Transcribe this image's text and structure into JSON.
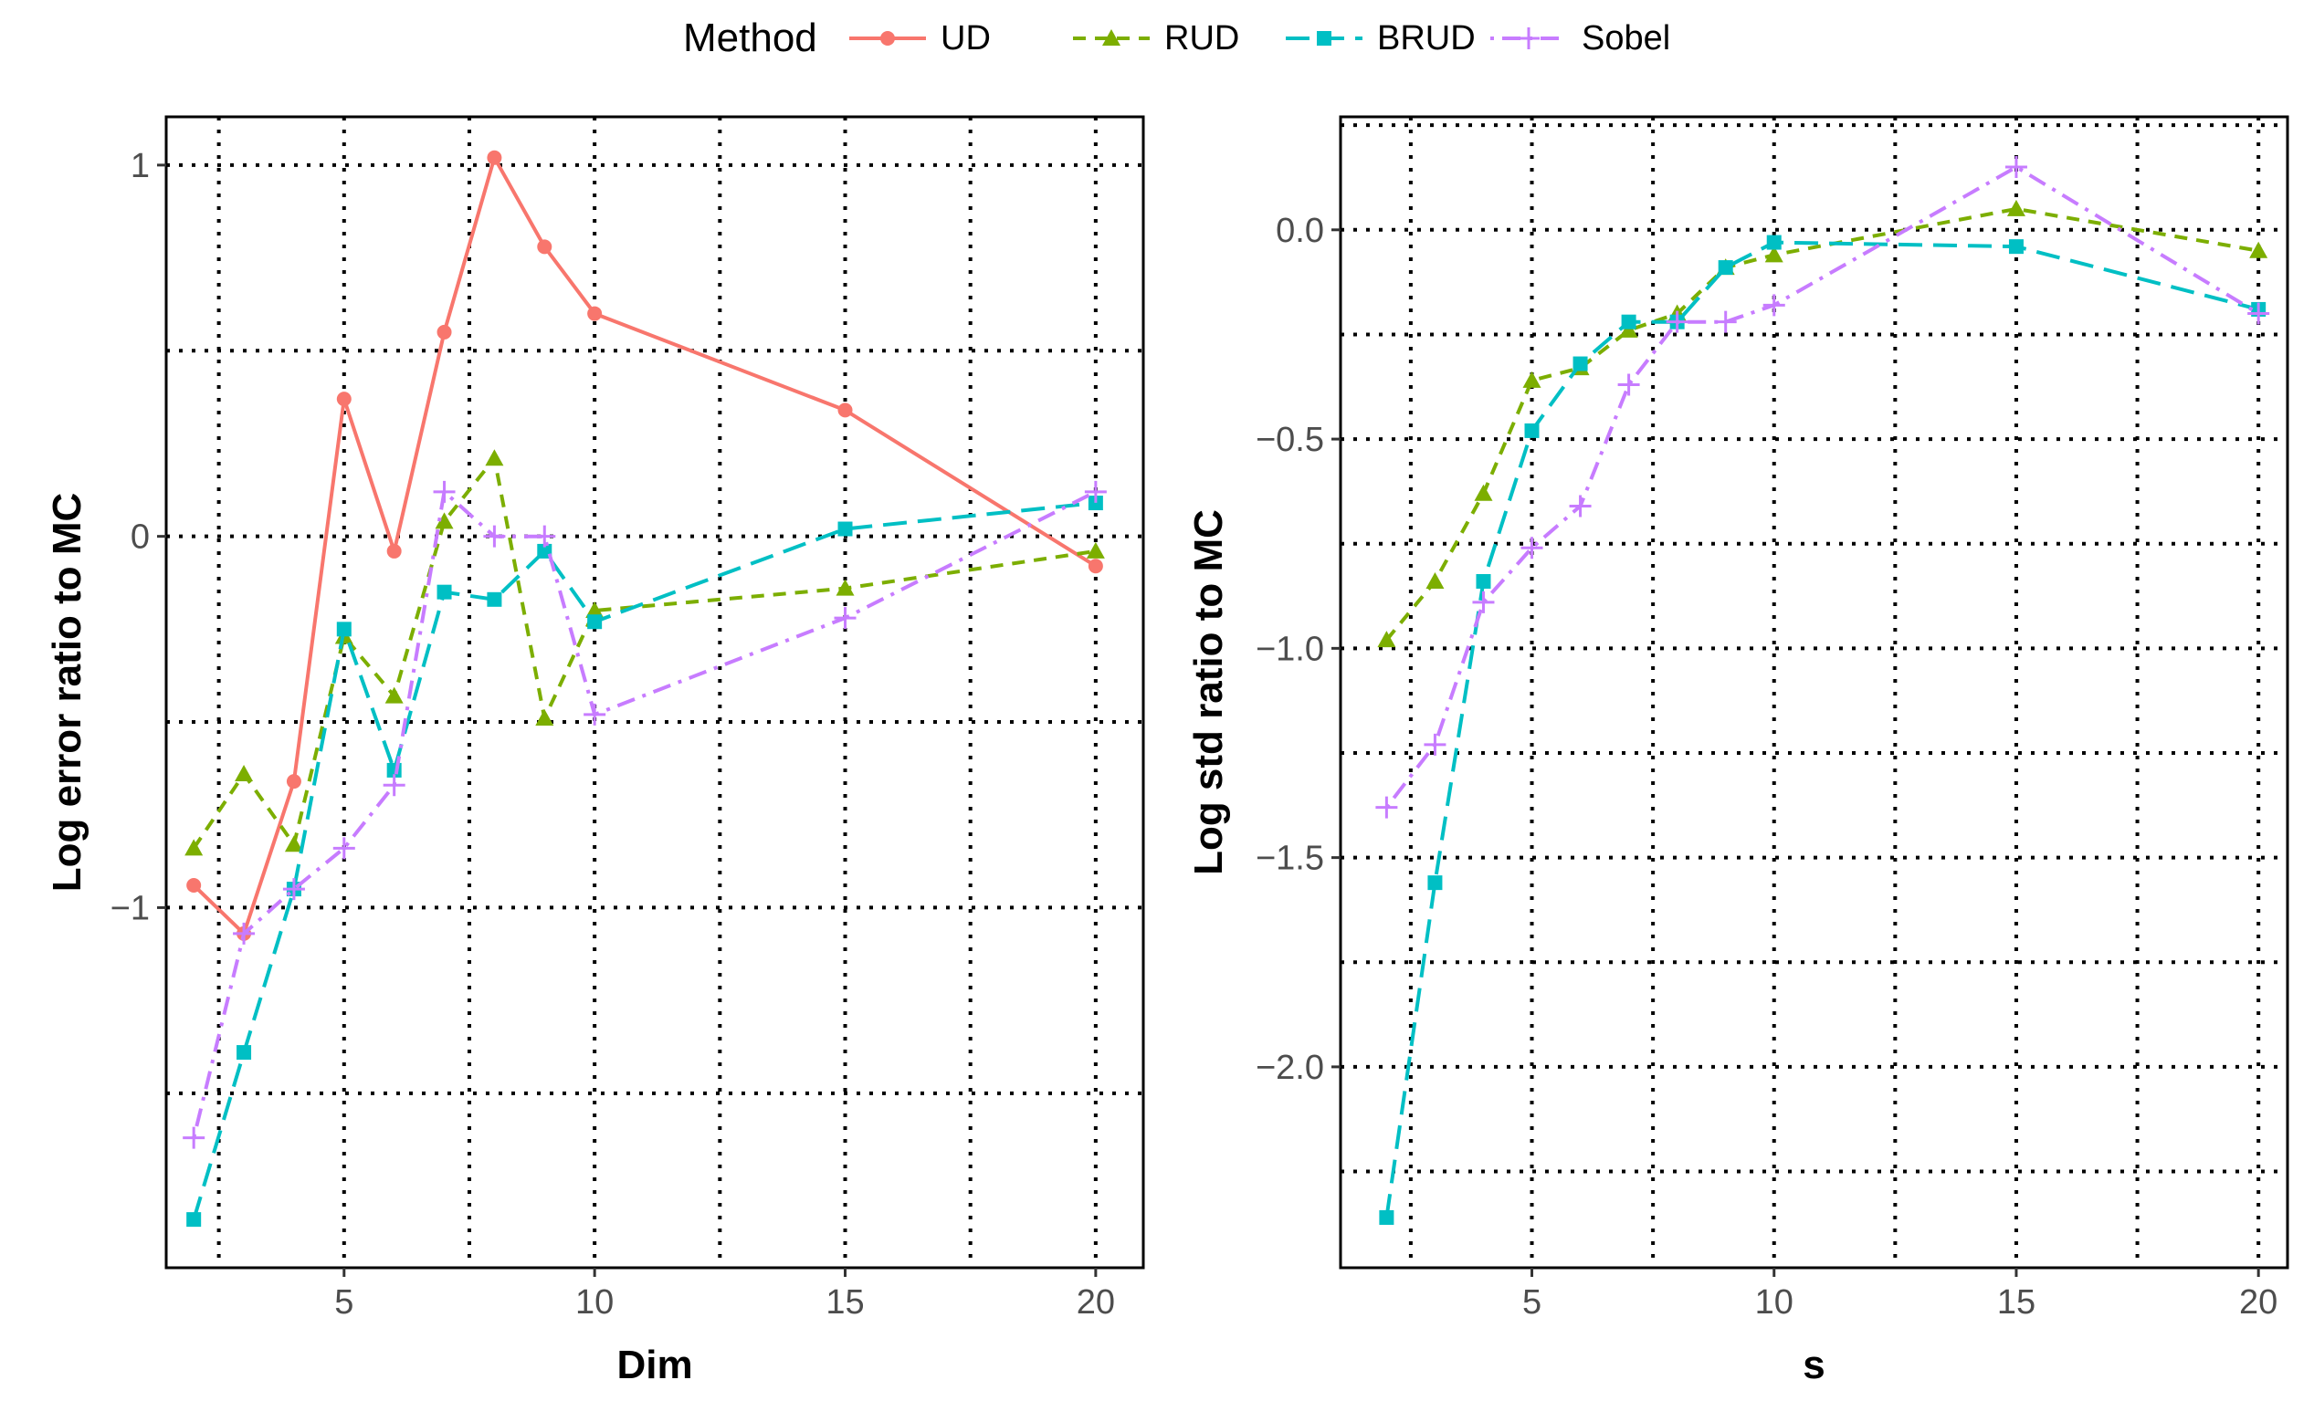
{
  "legend": {
    "title": "Method",
    "entries": [
      {
        "name": "UD",
        "color": "#F8766D",
        "marker": "circle",
        "dash": "solid"
      },
      {
        "name": "RUD",
        "color": "#7CAE00",
        "marker": "triangle",
        "dash": "dashed"
      },
      {
        "name": "BRUD",
        "color": "#00BFC4",
        "marker": "square",
        "dash": "longdash"
      },
      {
        "name": "Sobel",
        "color": "#C77CFF",
        "marker": "plus",
        "dash": "dotdash"
      }
    ]
  },
  "chart_data": [
    {
      "type": "line",
      "xlabel": "Dim",
      "ylabel": "Log error ratio to MC",
      "xlim": [
        1.45,
        20.95
      ],
      "ylim": [
        -1.97,
        1.13
      ],
      "x_ticks": [
        5,
        10,
        15,
        20
      ],
      "x_tick_labels": [
        "5",
        "10",
        "15",
        "20"
      ],
      "y_ticks": [
        -1,
        0,
        1
      ],
      "y_tick_labels": [
        "−1",
        "0",
        "1"
      ],
      "grid_x": [
        2.5,
        5,
        7.5,
        10,
        12.5,
        15,
        17.5,
        20
      ],
      "grid_y": [
        -1.5,
        -1,
        -0.5,
        0,
        0.5,
        1
      ],
      "x": [
        2,
        3,
        4,
        5,
        6,
        7,
        8,
        9,
        10,
        15,
        20
      ],
      "series": [
        {
          "name": "UD",
          "values": [
            -0.94,
            -1.07,
            -0.66,
            0.37,
            -0.04,
            0.55,
            1.02,
            0.78,
            0.6,
            0.34,
            -0.08
          ]
        },
        {
          "name": "RUD",
          "values": [
            -0.84,
            -0.64,
            -0.83,
            -0.27,
            -0.43,
            0.04,
            0.21,
            -0.49,
            -0.2,
            -0.14,
            -0.04
          ]
        },
        {
          "name": "BRUD",
          "values": [
            -1.84,
            -1.39,
            -0.95,
            -0.25,
            -0.63,
            -0.15,
            -0.17,
            -0.04,
            -0.23,
            0.02,
            0.09
          ]
        },
        {
          "name": "Sobel",
          "values": [
            -1.62,
            -1.07,
            -0.95,
            -0.84,
            -0.67,
            0.12,
            0.0,
            0.0,
            -0.48,
            -0.22,
            0.12
          ]
        }
      ]
    },
    {
      "type": "line",
      "xlabel": "s",
      "ylabel": "Log std ratio to MC",
      "xlim": [
        1.05,
        20.6
      ],
      "ylim": [
        -2.48,
        0.27
      ],
      "x_ticks": [
        5,
        10,
        15,
        20
      ],
      "x_tick_labels": [
        "5",
        "10",
        "15",
        "20"
      ],
      "y_ticks": [
        -2.0,
        -1.5,
        -1.0,
        -0.5,
        0.0
      ],
      "y_tick_labels": [
        "−2.0",
        "−1.5",
        "−1.0",
        "−0.5",
        "0.0"
      ],
      "grid_x": [
        2.5,
        5,
        7.5,
        10,
        12.5,
        15,
        17.5,
        20
      ],
      "grid_y": [
        -2.25,
        -2.0,
        -1.75,
        -1.5,
        -1.25,
        -1.0,
        -0.75,
        -0.5,
        -0.25,
        0.0,
        0.25
      ],
      "x": [
        2,
        3,
        4,
        5,
        6,
        7,
        8,
        9,
        10,
        15,
        20
      ],
      "series": [
        {
          "name": "RUD",
          "values": [
            -0.98,
            -0.84,
            -0.63,
            -0.36,
            -0.33,
            -0.24,
            -0.2,
            -0.09,
            -0.06,
            0.05,
            -0.05
          ]
        },
        {
          "name": "BRUD",
          "values": [
            -2.36,
            -1.56,
            -0.84,
            -0.48,
            -0.32,
            -0.22,
            -0.22,
            -0.09,
            -0.03,
            -0.04,
            -0.19
          ]
        },
        {
          "name": "Sobel",
          "values": [
            -1.38,
            -1.23,
            -0.89,
            -0.76,
            -0.66,
            -0.37,
            -0.22,
            -0.22,
            -0.18,
            0.15,
            -0.2
          ]
        }
      ]
    }
  ]
}
